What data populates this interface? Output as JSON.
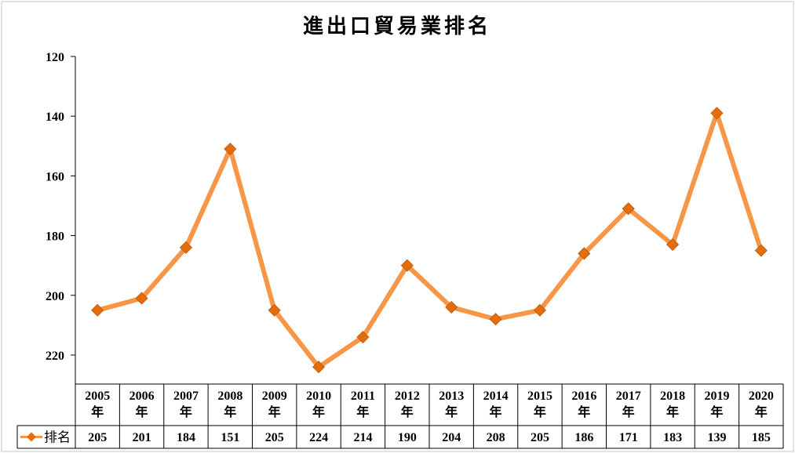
{
  "chart_data": {
    "type": "line",
    "title": "進出口貿易業排名",
    "y_axis": {
      "min": 120,
      "max": 230,
      "reversed": true,
      "ticks": [
        120,
        140,
        160,
        180,
        200,
        220
      ],
      "grid": false
    },
    "categories": [
      "2005年",
      "2006年",
      "2007年",
      "2008年",
      "2009年",
      "2010年",
      "2011年",
      "2012年",
      "2013年",
      "2014年",
      "2015年",
      "2016年",
      "2017年",
      "2018年",
      "2019年",
      "2020年"
    ],
    "series": [
      {
        "name": "排名",
        "values": [
          205,
          201,
          184,
          151,
          205,
          224,
          214,
          190,
          204,
          208,
          205,
          186,
          171,
          183,
          139,
          185
        ]
      }
    ],
    "legend": "data-table-left",
    "colors": {
      "line": "#F79646",
      "marker": "#E46C0A",
      "frame": "#D9D9D9",
      "table_border": "#000000"
    }
  }
}
